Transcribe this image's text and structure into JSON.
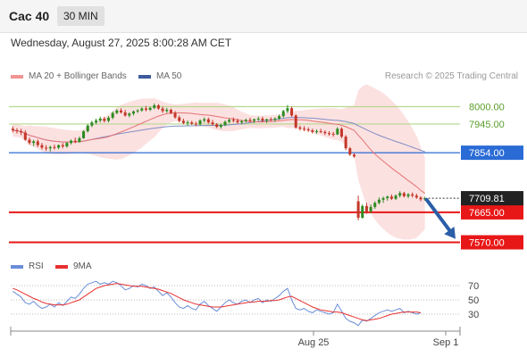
{
  "header": {
    "instrument": "Cac 40",
    "timeframe": "30 MIN"
  },
  "datetime": "Wednesday, August 27, 2025 8:00:28 AM CET",
  "legend": {
    "ma20_label": "MA 20 + Bollinger Bands",
    "ma50_label": "MA 50",
    "credit": "Research © 2025 Trading Central",
    "rsi_label": "RSI",
    "rsi_ma_label": "9MA"
  },
  "colors": {
    "candle_up": "#2e8b22",
    "candle_down": "#c4382b",
    "ma20": "#e57373",
    "ma50": "#7f8fc4",
    "bollinger_fill": "#fbdcdc",
    "target_green": "#b5d88d",
    "pivot_blue": "#2a6bd6",
    "support_red": "#e81717",
    "arrow": "#2b5ea8",
    "rsi": "#6a8ed8",
    "rsi_ma": "#e83030"
  },
  "chart_data": [
    {
      "type": "candlestick",
      "title": "Cac 40 30 MIN",
      "ylim": [
        7540,
        8030
      ],
      "x_ticks": [
        "Aug 25",
        "Sep 1"
      ],
      "current_price": {
        "label": "7709.81",
        "value": 7709.81
      },
      "levels": [
        {
          "label": "8000.00",
          "value": 8000.0,
          "kind": "resistance-target"
        },
        {
          "label": "7945.00",
          "value": 7945.0,
          "kind": "resistance-target"
        },
        {
          "label": "7854.00",
          "value": 7854.0,
          "kind": "pivot"
        },
        {
          "label": "7665.00",
          "value": 7665.0,
          "kind": "support"
        },
        {
          "label": "7570.00",
          "value": 7570.0,
          "kind": "support"
        }
      ],
      "projection": {
        "from": 7705,
        "to": 7575,
        "direction": "down"
      },
      "series": [
        {
          "name": "Cac 40",
          "ohlc": [
            [
              7930,
              7938,
              7918,
              7925
            ],
            [
              7925,
              7932,
              7915,
              7922
            ],
            [
              7922,
              7930,
              7910,
              7918
            ],
            [
              7918,
              7925,
              7892,
              7895
            ],
            [
              7895,
              7902,
              7880,
              7885
            ],
            [
              7885,
              7895,
              7875,
              7890
            ],
            [
              7890,
              7896,
              7872,
              7878
            ],
            [
              7878,
              7885,
              7864,
              7870
            ],
            [
              7870,
              7878,
              7860,
              7868
            ],
            [
              7868,
              7876,
              7858,
              7872
            ],
            [
              7872,
              7880,
              7864,
              7870
            ],
            [
              7870,
              7880,
              7865,
              7878
            ],
            [
              7878,
              7885,
              7868,
              7874
            ],
            [
              7874,
              7888,
              7870,
              7885
            ],
            [
              7885,
              7896,
              7880,
              7892
            ],
            [
              7892,
              7902,
              7884,
              7888
            ],
            [
              7888,
              7905,
              7886,
              7900
            ],
            [
              7900,
              7925,
              7898,
              7922
            ],
            [
              7922,
              7945,
              7918,
              7940
            ],
            [
              7940,
              7955,
              7935,
              7950
            ],
            [
              7950,
              7962,
              7944,
              7956
            ],
            [
              7956,
              7968,
              7950,
              7962
            ],
            [
              7962,
              7968,
              7950,
              7955
            ],
            [
              7955,
              7970,
              7950,
              7965
            ],
            [
              7965,
              7985,
              7960,
              7980
            ],
            [
              7980,
              7992,
              7976,
              7988
            ],
            [
              7988,
              7995,
              7978,
              7982
            ],
            [
              7982,
              7990,
              7968,
              7972
            ],
            [
              7972,
              7982,
              7966,
              7978
            ],
            [
              7978,
              7988,
              7972,
              7985
            ],
            [
              7985,
              7992,
              7980,
              7988
            ],
            [
              7988,
              7998,
              7984,
              7994
            ],
            [
              7994,
              8002,
              7985,
              7990
            ],
            [
              7990,
              8000,
              7986,
              7996
            ],
            [
              7996,
              8010,
              7992,
              8004
            ],
            [
              8004,
              8008,
              7990,
              7994
            ],
            [
              7994,
              8000,
              7980,
              7986
            ],
            [
              7986,
              7996,
              7980,
              7990
            ],
            [
              7990,
              7994,
              7976,
              7980
            ],
            [
              7980,
              7986,
              7962,
              7966
            ],
            [
              7966,
              7972,
              7950,
              7955
            ],
            [
              7955,
              7962,
              7944,
              7948
            ],
            [
              7948,
              7956,
              7940,
              7950
            ],
            [
              7950,
              7955,
              7942,
              7946
            ],
            [
              7946,
              7952,
              7938,
              7944
            ],
            [
              7944,
              7960,
              7940,
              7956
            ],
            [
              7956,
              7966,
              7950,
              7960
            ],
            [
              7960,
              7965,
              7946,
              7950
            ],
            [
              7950,
              7958,
              7940,
              7944
            ],
            [
              7944,
              7948,
              7932,
              7936
            ],
            [
              7936,
              7946,
              7930,
              7942
            ],
            [
              7942,
              7956,
              7938,
              7952
            ],
            [
              7952,
              7962,
              7948,
              7958
            ],
            [
              7958,
              7966,
              7950,
              7955
            ],
            [
              7955,
              7962,
              7946,
              7950
            ],
            [
              7950,
              7958,
              7944,
              7954
            ],
            [
              7954,
              7962,
              7950,
              7958
            ],
            [
              7958,
              7965,
              7950,
              7955
            ],
            [
              7955,
              7962,
              7948,
              7960
            ],
            [
              7960,
              7968,
              7955,
              7962
            ],
            [
              7962,
              7968,
              7950,
              7956
            ],
            [
              7956,
              7962,
              7948,
              7960
            ],
            [
              7960,
              7966,
              7954,
              7958
            ],
            [
              7958,
              7966,
              7952,
              7962
            ],
            [
              7962,
              7975,
              7958,
              7970
            ],
            [
              7970,
              7990,
              7965,
              7986
            ],
            [
              7986,
              8005,
              7980,
              7995
            ],
            [
              7995,
              8000,
              7968,
              7972
            ],
            [
              7972,
              7976,
              7930,
              7934
            ],
            [
              7934,
              7940,
              7924,
              7930
            ],
            [
              7930,
              7938,
              7922,
              7928
            ],
            [
              7928,
              7934,
              7920,
              7925
            ],
            [
              7925,
              7930,
              7915,
              7920
            ],
            [
              7920,
              7928,
              7914,
              7922
            ],
            [
              7922,
              7930,
              7916,
              7920
            ],
            [
              7920,
              7925,
              7910,
              7916
            ],
            [
              7916,
              7922,
              7908,
              7914
            ],
            [
              7914,
              7920,
              7905,
              7912
            ],
            [
              7912,
              7935,
              7910,
              7930
            ],
            [
              7930,
              7935,
              7900,
              7905
            ],
            [
              7905,
              7910,
              7862,
              7868
            ],
            [
              7868,
              7872,
              7844,
              7848
            ],
            [
              7848,
              7852,
              7838,
              7842
            ],
            [
              7700,
              7718,
              7640,
              7648
            ],
            [
              7648,
              7690,
              7645,
              7685
            ],
            [
              7685,
              7695,
              7660,
              7668
            ],
            [
              7668,
              7690,
              7662,
              7682
            ],
            [
              7682,
              7700,
              7676,
              7695
            ],
            [
              7695,
              7712,
              7690,
              7705
            ],
            [
              7705,
              7715,
              7695,
              7710
            ],
            [
              7710,
              7718,
              7702,
              7715
            ],
            [
              7715,
              7722,
              7704,
              7708
            ],
            [
              7708,
              7722,
              7704,
              7718
            ],
            [
              7718,
              7732,
              7712,
              7726
            ],
            [
              7726,
              7730,
              7712,
              7716
            ],
            [
              7716,
              7726,
              7710,
              7722
            ],
            [
              7722,
              7728,
              7712,
              7718
            ],
            [
              7718,
              7724,
              7708,
              7712
            ],
            [
              7712,
              7716,
              7700,
              7706
            ],
            [
              7706,
              7714,
              7702,
              7710
            ]
          ]
        }
      ]
    },
    {
      "type": "line",
      "title": "RSI",
      "yticks": [
        70,
        50,
        30
      ],
      "series": [
        {
          "name": "RSI",
          "values": [
            62,
            58,
            54,
            46,
            44,
            48,
            42,
            38,
            40,
            44,
            40,
            46,
            42,
            48,
            54,
            52,
            58,
            66,
            72,
            74,
            76,
            72,
            74,
            72,
            76,
            74,
            70,
            64,
            66,
            70,
            68,
            72,
            70,
            66,
            68,
            62,
            56,
            60,
            54,
            46,
            40,
            38,
            42,
            38,
            36,
            44,
            48,
            42,
            38,
            34,
            40,
            46,
            50,
            46,
            44,
            48,
            50,
            46,
            50,
            52,
            46,
            50,
            48,
            52,
            56,
            62,
            66,
            50,
            38,
            36,
            38,
            34,
            32,
            36,
            34,
            32,
            30,
            32,
            44,
            34,
            24,
            20,
            18,
            14,
            22,
            20,
            24,
            28,
            32,
            34,
            36,
            34,
            36,
            38,
            32,
            34,
            32,
            30,
            32
          ]
        },
        {
          "name": "9MA",
          "values": [
            66,
            64,
            61,
            58,
            55,
            52,
            50,
            47,
            45,
            44,
            43,
            43,
            43,
            44,
            46,
            48,
            50,
            54,
            58,
            62,
            66,
            68,
            70,
            71,
            72,
            73,
            72,
            71,
            70,
            69,
            69,
            69,
            68,
            67,
            66,
            65,
            63,
            61,
            59,
            56,
            53,
            50,
            48,
            46,
            44,
            43,
            42,
            41,
            40,
            40,
            40,
            41,
            42,
            43,
            44,
            45,
            46,
            47,
            47,
            48,
            48,
            48,
            49,
            49,
            50,
            52,
            54,
            55,
            52,
            49,
            46,
            43,
            40,
            38,
            36,
            35,
            34,
            33,
            33,
            32,
            30,
            28,
            26,
            24,
            22,
            21,
            22,
            23,
            24,
            26,
            28,
            30,
            31,
            32,
            33,
            33,
            33,
            33,
            32
          ]
        }
      ]
    }
  ]
}
